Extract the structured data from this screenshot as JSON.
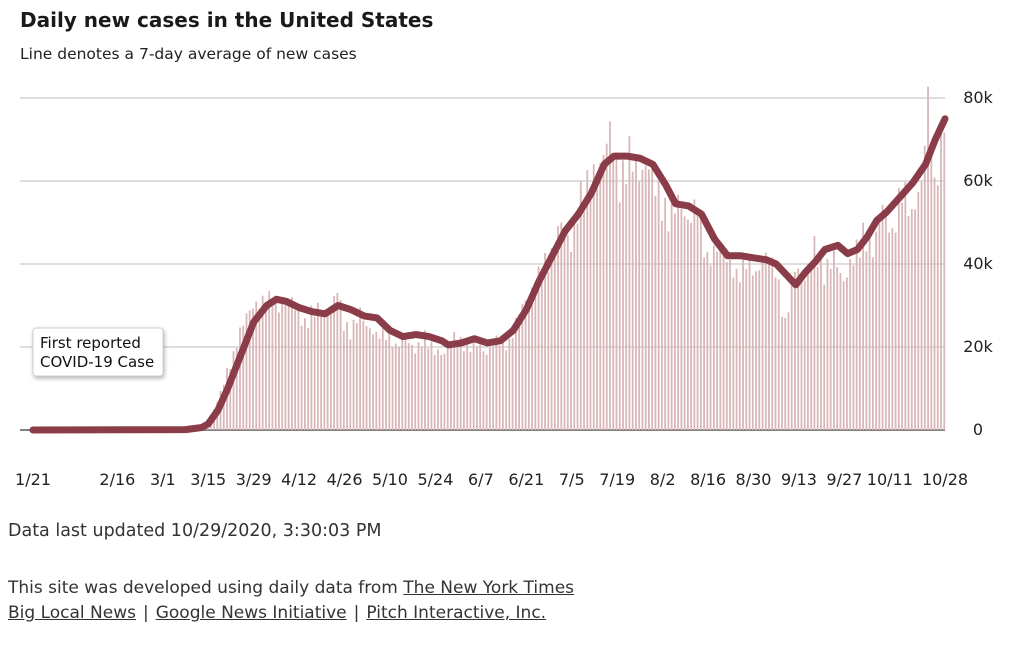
{
  "header": {
    "title": "Daily new cases in the United States",
    "subtitle": "Line denotes a 7-day average of new cases"
  },
  "annotation": {
    "line1": "First reported",
    "line2": "COVID-19 Case"
  },
  "updated": "Data last updated 10/29/2020, 3:30:03 PM",
  "footer": {
    "prefix": "This site was developed using daily data from ",
    "links": [
      "The New York Times",
      "Big Local News",
      "Google News Initiative",
      "Pitch Interactive, Inc."
    ],
    "separator": "|"
  },
  "colors": {
    "bar": "#d9b6b8",
    "line": "#8a3d48",
    "grid": "#bdbdbd",
    "zero": "#555555"
  },
  "chart_data": {
    "type": "bar",
    "title": "Daily new cases in the United States",
    "subtitle": "Line denotes a 7-day average of new cases",
    "x_start": "1/21",
    "x_end": "10/28",
    "xticks": [
      "1/21",
      "2/16",
      "3/1",
      "3/15",
      "3/29",
      "4/12",
      "4/26",
      "5/10",
      "5/24",
      "6/7",
      "6/21",
      "7/5",
      "7/19",
      "8/2",
      "8/16",
      "8/30",
      "9/13",
      "9/27",
      "10/11",
      "10/28"
    ],
    "yticks": [
      0,
      20000,
      40000,
      60000,
      80000
    ],
    "ytick_labels": [
      "0",
      "20k",
      "40k",
      "60k",
      "80k"
    ],
    "ylim": [
      0,
      80000
    ],
    "grid": true,
    "series": [
      {
        "kind": "bars",
        "description": "daily new cases",
        "points": [
          [
            "1/21",
            0
          ],
          [
            "2/29",
            0
          ],
          [
            "3/8",
            150
          ],
          [
            "3/12",
            700
          ],
          [
            "3/15",
            2300
          ],
          [
            "3/17",
            5200
          ],
          [
            "3/19",
            9500
          ],
          [
            "3/21",
            15000
          ],
          [
            "3/23",
            19000
          ],
          [
            "3/25",
            25000
          ],
          [
            "3/27",
            29000
          ],
          [
            "3/29",
            31000
          ],
          [
            "3/31",
            32000
          ],
          [
            "4/2",
            33000
          ],
          [
            "4/4",
            34000
          ],
          [
            "4/6",
            31000
          ],
          [
            "4/8",
            32000
          ],
          [
            "4/10",
            33000
          ],
          [
            "4/12",
            29000
          ],
          [
            "4/14",
            27000
          ],
          [
            "4/16",
            30000
          ],
          [
            "4/18",
            31000
          ],
          [
            "4/20",
            28000
          ],
          [
            "4/22",
            30000
          ],
          [
            "4/24",
            36000
          ],
          [
            "4/26",
            27000
          ],
          [
            "4/28",
            25000
          ],
          [
            "5/1",
            30000
          ],
          [
            "5/3",
            26000
          ],
          [
            "5/6",
            24000
          ],
          [
            "5/9",
            25000
          ],
          [
            "5/12",
            21000
          ],
          [
            "5/15",
            23000
          ],
          [
            "5/18",
            20000
          ],
          [
            "5/21",
            24000
          ],
          [
            "5/24",
            20000
          ],
          [
            "5/27",
            19000
          ],
          [
            "5/30",
            24000
          ],
          [
            "6/3",
            21000
          ],
          [
            "6/6",
            22000
          ],
          [
            "6/9",
            19000
          ],
          [
            "6/12",
            23000
          ],
          [
            "6/16",
            22000
          ],
          [
            "6/19",
            30000
          ],
          [
            "6/23",
            35000
          ],
          [
            "6/26",
            42000
          ],
          [
            "6/29",
            44000
          ],
          [
            "7/2",
            53000
          ],
          [
            "7/5",
            46000
          ],
          [
            "7/8",
            60000
          ],
          [
            "7/11",
            64000
          ],
          [
            "7/14",
            66000
          ],
          [
            "7/17",
            76000
          ],
          [
            "7/20",
            62000
          ],
          [
            "7/23",
            71000
          ],
          [
            "7/26",
            64000
          ],
          [
            "7/29",
            67000
          ],
          [
            "8/1",
            60000
          ],
          [
            "8/4",
            54000
          ],
          [
            "8/7",
            58000
          ],
          [
            "8/10",
            52000
          ],
          [
            "8/13",
            58000
          ],
          [
            "8/16",
            43000
          ],
          [
            "8/19",
            46000
          ],
          [
            "8/22",
            43000
          ],
          [
            "8/25",
            39000
          ],
          [
            "8/28",
            44000
          ],
          [
            "8/31",
            39000
          ],
          [
            "9/3",
            44000
          ],
          [
            "9/6",
            41000
          ],
          [
            "9/9",
            27000
          ],
          [
            "9/12",
            41000
          ],
          [
            "9/15",
            38000
          ],
          [
            "9/18",
            47000
          ],
          [
            "9/21",
            40000
          ],
          [
            "9/24",
            44000
          ],
          [
            "9/27",
            37000
          ],
          [
            "9/30",
            44000
          ],
          [
            "10/3",
            50000
          ],
          [
            "10/6",
            45000
          ],
          [
            "10/9",
            57000
          ],
          [
            "10/12",
            49000
          ],
          [
            "10/15",
            63000
          ],
          [
            "10/18",
            54000
          ],
          [
            "10/21",
            62000
          ],
          [
            "10/23",
            84000
          ],
          [
            "10/25",
            61000
          ],
          [
            "10/28",
            81000
          ]
        ]
      },
      {
        "kind": "line",
        "description": "7-day average of new cases",
        "points": [
          [
            "1/21",
            0
          ],
          [
            "3/8",
            100
          ],
          [
            "3/13",
            600
          ],
          [
            "3/15",
            1500
          ],
          [
            "3/18",
            4800
          ],
          [
            "3/21",
            10000
          ],
          [
            "3/25",
            18000
          ],
          [
            "3/29",
            26000
          ],
          [
            "4/2",
            30000
          ],
          [
            "4/5",
            31500
          ],
          [
            "4/8",
            31000
          ],
          [
            "4/12",
            29500
          ],
          [
            "4/16",
            28500
          ],
          [
            "4/20",
            28000
          ],
          [
            "4/24",
            30000
          ],
          [
            "4/28",
            29000
          ],
          [
            "5/2",
            27500
          ],
          [
            "5/6",
            27000
          ],
          [
            "5/10",
            24000
          ],
          [
            "5/14",
            22500
          ],
          [
            "5/18",
            23000
          ],
          [
            "5/22",
            22500
          ],
          [
            "5/26",
            21500
          ],
          [
            "5/28",
            20500
          ],
          [
            "6/1",
            21000
          ],
          [
            "6/5",
            22000
          ],
          [
            "6/9",
            21000
          ],
          [
            "6/13",
            21500
          ],
          [
            "6/17",
            24000
          ],
          [
            "6/21",
            29000
          ],
          [
            "6/25",
            36000
          ],
          [
            "6/29",
            42000
          ],
          [
            "7/3",
            48000
          ],
          [
            "7/7",
            52000
          ],
          [
            "7/11",
            57000
          ],
          [
            "7/15",
            64000
          ],
          [
            "7/18",
            66000
          ],
          [
            "7/22",
            66000
          ],
          [
            "7/26",
            65500
          ],
          [
            "7/30",
            64000
          ],
          [
            "8/3",
            59000
          ],
          [
            "8/6",
            54500
          ],
          [
            "8/10",
            54000
          ],
          [
            "8/14",
            52000
          ],
          [
            "8/18",
            46000
          ],
          [
            "8/22",
            42000
          ],
          [
            "8/26",
            42000
          ],
          [
            "8/30",
            41500
          ],
          [
            "9/3",
            41000
          ],
          [
            "9/6",
            40000
          ],
          [
            "9/9",
            37500
          ],
          [
            "9/12",
            35000
          ],
          [
            "9/15",
            38000
          ],
          [
            "9/18",
            40500
          ],
          [
            "9/21",
            43500
          ],
          [
            "9/25",
            44500
          ],
          [
            "9/28",
            42500
          ],
          [
            "10/1",
            43500
          ],
          [
            "10/4",
            46500
          ],
          [
            "10/7",
            50500
          ],
          [
            "10/10",
            52500
          ],
          [
            "10/14",
            56000
          ],
          [
            "10/18",
            59500
          ],
          [
            "10/22",
            64000
          ],
          [
            "10/25",
            70000
          ],
          [
            "10/28",
            75000
          ]
        ]
      }
    ],
    "annotations": [
      {
        "x": "1/21",
        "text": "First reported COVID-19 Case"
      }
    ]
  }
}
